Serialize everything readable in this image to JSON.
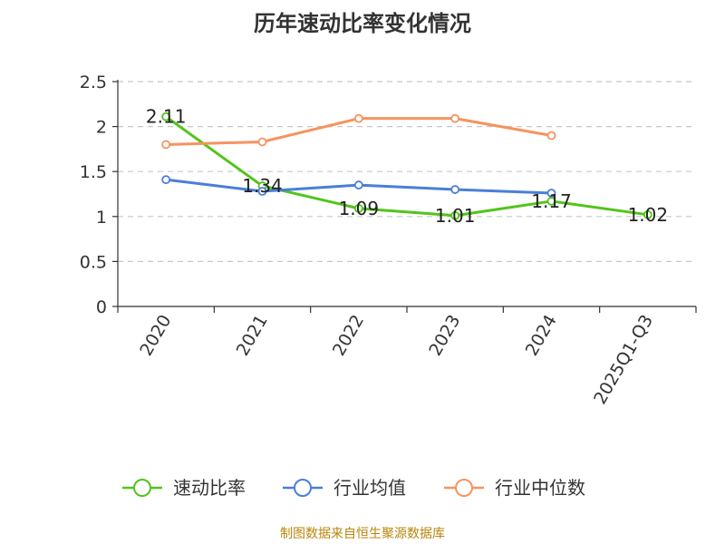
{
  "chart_data": {
    "type": "line",
    "title": "历年速动比率变化情况",
    "categories": [
      "2020",
      "2021",
      "2022",
      "2023",
      "2024",
      "2025Q1-Q3"
    ],
    "ylim": [
      0,
      2.5
    ],
    "yticks": [
      "0",
      "0.5",
      "1",
      "1.5",
      "2",
      "2.5"
    ],
    "ytick_values": [
      0,
      0.5,
      1,
      1.5,
      2,
      2.5
    ],
    "grid": true,
    "legend_position": "bottom",
    "series": [
      {
        "name": "速动比率",
        "color": "#52c41a",
        "values": [
          2.11,
          1.34,
          1.09,
          1.01,
          1.17,
          1.02
        ],
        "labels": [
          "2.11",
          "1.34",
          "1.09",
          "1.01",
          "1.17",
          "1.02"
        ]
      },
      {
        "name": "行业均值",
        "color": "#4a7fd8",
        "values": [
          1.41,
          1.28,
          1.35,
          1.3,
          1.26,
          null
        ]
      },
      {
        "name": "行业中位数",
        "color": "#f5935f",
        "values": [
          1.8,
          1.83,
          2.09,
          2.09,
          1.9,
          null
        ]
      }
    ]
  },
  "source": "制图数据来自恒生聚源数据库"
}
